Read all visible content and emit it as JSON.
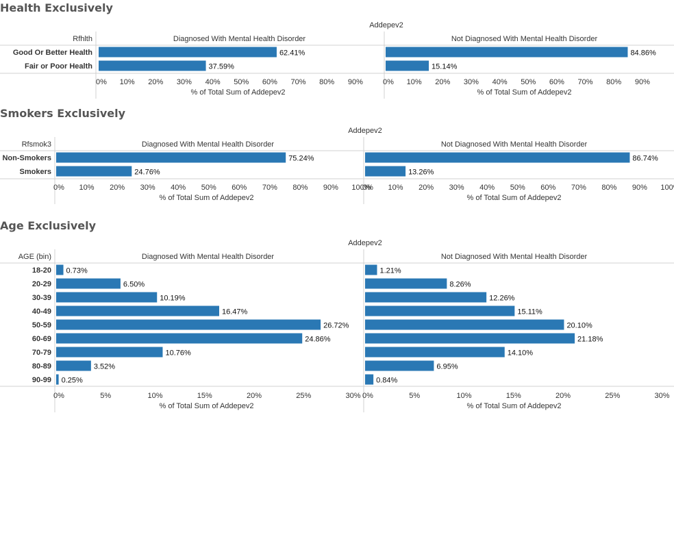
{
  "chart_data": [
    {
      "type": "bar",
      "orientation": "horizontal",
      "title": "Health Exclusively",
      "column_header": "Addepev2",
      "row_header": "Rfhlth",
      "categories": [
        "Good Or Better Health",
        "Fair or Poor Health"
      ],
      "series": [
        {
          "name": "Diagnosed With Mental Health Disorder",
          "values": [
            62.41,
            37.59
          ]
        },
        {
          "name": "Not Diagnosed With Mental Health Disorder",
          "values": [
            84.86,
            15.14
          ]
        }
      ],
      "value_labels": [
        [
          "62.41%",
          "37.59%"
        ],
        [
          "84.86%",
          "15.14%"
        ]
      ],
      "xlabel": "% of Total Sum of Addepev2",
      "xlim": [
        0,
        100
      ],
      "xticks": [
        0,
        10,
        20,
        30,
        40,
        50,
        60,
        70,
        80,
        90
      ],
      "xtick_labels": [
        "0%",
        "10%",
        "20%",
        "30%",
        "40%",
        "50%",
        "60%",
        "70%",
        "80%",
        "90%"
      ]
    },
    {
      "type": "bar",
      "orientation": "horizontal",
      "title": "Smokers Exclusively",
      "column_header": "Addepev2",
      "row_header": "Rfsmok3",
      "categories": [
        "Non-Smokers",
        "Smokers"
      ],
      "series": [
        {
          "name": "Diagnosed With Mental Health Disorder",
          "values": [
            75.24,
            24.76
          ]
        },
        {
          "name": "Not Diagnosed With Mental Health Disorder",
          "values": [
            86.74,
            13.26
          ]
        }
      ],
      "value_labels": [
        [
          "75.24%",
          "24.76%"
        ],
        [
          "86.74%",
          "13.26%"
        ]
      ],
      "xlabel": "% of Total Sum of Addepev2",
      "xlim": [
        0,
        100
      ],
      "xticks": [
        0,
        10,
        20,
        30,
        40,
        50,
        60,
        70,
        80,
        90,
        100
      ],
      "xtick_labels": [
        "0%",
        "10%",
        "20%",
        "30%",
        "40%",
        "50%",
        "60%",
        "70%",
        "80%",
        "90%",
        "100%"
      ]
    },
    {
      "type": "bar",
      "orientation": "horizontal",
      "title": "Age Exclusively",
      "column_header": "Addepev2",
      "row_header": "AGE (bin)",
      "categories": [
        "18-20",
        "20-29",
        "30-39",
        "40-49",
        "50-59",
        "60-69",
        "70-79",
        "80-89",
        "90-99"
      ],
      "series": [
        {
          "name": "Diagnosed With Mental Health Disorder",
          "values": [
            0.73,
            6.5,
            10.19,
            16.47,
            26.72,
            24.86,
            10.76,
            3.52,
            0.25
          ]
        },
        {
          "name": "Not Diagnosed With Mental Health Disorder",
          "values": [
            1.21,
            8.26,
            12.26,
            15.11,
            20.1,
            21.18,
            14.1,
            6.95,
            0.84
          ]
        }
      ],
      "value_labels": [
        [
          "0.73%",
          "6.50%",
          "10.19%",
          "16.47%",
          "26.72%",
          "24.86%",
          "10.76%",
          "3.52%",
          "0.25%"
        ],
        [
          "1.21%",
          "8.26%",
          "12.26%",
          "15.11%",
          "20.10%",
          "21.18%",
          "14.10%",
          "6.95%",
          "0.84%"
        ]
      ],
      "xlabel": "% of Total Sum of Addepev2",
      "xlim": [
        0,
        30.5
      ],
      "xticks": [
        0,
        5,
        10,
        15,
        20,
        25,
        30
      ],
      "xtick_labels": [
        "0%",
        "5%",
        "10%",
        "15%",
        "20%",
        "25%",
        "30%"
      ]
    }
  ],
  "colors": {
    "bar": "#2a78b4",
    "gridline": "#d0d0d0",
    "text": "#333333",
    "title": "#555555"
  }
}
